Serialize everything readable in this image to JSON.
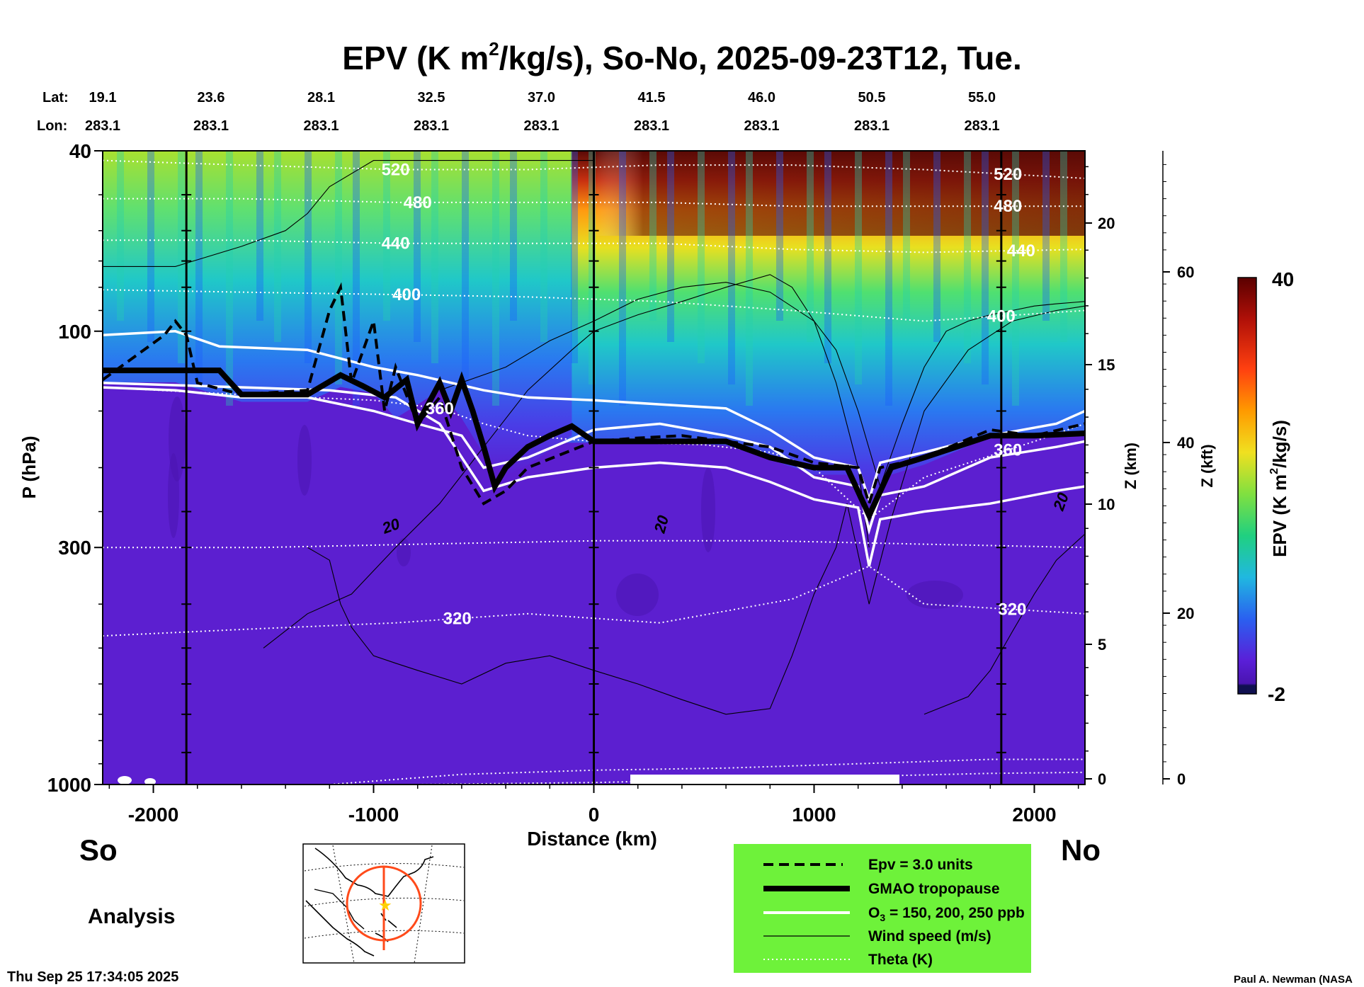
{
  "title_main": "EPV (K m",
  "title_sup": "2",
  "title_rest": "/kg/s), So-No, 2025-09-23T12, Tue.",
  "lat_label": "Lat:",
  "lon_label": "Lon:",
  "lat_values": [
    "19.1",
    "23.6",
    "28.1",
    "32.5",
    "37.0",
    "41.5",
    "46.0",
    "50.5",
    "55.0"
  ],
  "lon_values": [
    "283.1",
    "283.1",
    "283.1",
    "283.1",
    "283.1",
    "283.1",
    "283.1",
    "283.1",
    "283.1"
  ],
  "left_end": "So",
  "right_end": "No",
  "analysis_label": "Analysis",
  "timestamp": "Thu Sep 25 17:34:05 2025",
  "credit": "Paul A. Newman (NASA",
  "legend": {
    "items": [
      {
        "label": "Epv = 3.0 units",
        "style": "dashed"
      },
      {
        "label": "GMAO tropopause",
        "style": "thick"
      },
      {
        "label_pre": "O",
        "label_sub": "3",
        "label_post": " = 150, 200, 250 ppb",
        "style": "white"
      },
      {
        "label": "Wind speed (m/s)",
        "style": "thin"
      },
      {
        "label": "Theta (K)",
        "style": "dotted"
      }
    ],
    "bg_color": "#6ef23a"
  },
  "colorbar": {
    "label_pre": "EPV (K m",
    "label_sup": "2",
    "label_post": "/kg/s)",
    "max_label": "40",
    "min_label": "-2"
  },
  "chart_data": {
    "type": "heatmap",
    "title": "EPV (K m2/kg/s), So-No, 2025-09-23T12, Tue.",
    "xlabel": "Distance (km)",
    "ylabel": "P (hPa)",
    "xlim": [
      -2230,
      2230
    ],
    "ylim": [
      1000,
      40
    ],
    "y_scale": "log",
    "x_ticks": [
      -2000,
      -1000,
      0,
      1000,
      2000
    ],
    "x_tick_labels": [
      "-2000",
      "-1000",
      "0",
      "1000",
      "2000"
    ],
    "y_ticks": [
      1000,
      300,
      100,
      40
    ],
    "y_tick_labels": [
      "1000",
      "300",
      "100",
      "40"
    ],
    "z_km_label": "Z (km)",
    "z_km_ticks": [
      0,
      5,
      10,
      15,
      20
    ],
    "z_km_tick_labels": [
      "0",
      "5",
      "10",
      "15",
      "20"
    ],
    "z_kft_label": "Z (kft)",
    "z_kft_ticks": [
      0,
      20,
      40,
      60
    ],
    "z_kft_tick_labels": [
      "0",
      "20",
      "40",
      "60"
    ],
    "colorbar_range": [
      -2,
      40
    ],
    "theta_contours": [
      {
        "label": "520",
        "x": [
          -2230,
          -1600,
          -900,
          -300,
          300,
          900,
          1500,
          2230
        ],
        "p": [
          42,
          43,
          44,
          44,
          43,
          43,
          44,
          46
        ]
      },
      {
        "label": "480",
        "x": [
          -2230,
          -1600,
          -900,
          -300,
          300,
          900,
          1500,
          2230
        ],
        "p": [
          51,
          51,
          52,
          52,
          52,
          53,
          53,
          53
        ]
      },
      {
        "label": "440",
        "x": [
          -2230,
          -1600,
          -900,
          -300,
          300,
          900,
          1500,
          2230
        ],
        "p": [
          63,
          63,
          64,
          64,
          64,
          66,
          67,
          66
        ]
      },
      {
        "label": "400",
        "x": [
          -2230,
          -1600,
          -900,
          -300,
          300,
          900,
          1500,
          2230
        ],
        "p": [
          81,
          82,
          83,
          84,
          86,
          90,
          95,
          90
        ]
      },
      {
        "label": "360",
        "x": [
          -2230,
          -1600,
          -1000,
          -700,
          -500,
          -300,
          0,
          500,
          800,
          1000,
          1250,
          1500,
          2000,
          2230
        ],
        "p": [
          133,
          138,
          142,
          148,
          160,
          170,
          175,
          178,
          185,
          200,
          260,
          210,
          175,
          160
        ]
      },
      {
        "label": "320",
        "x": [
          -2230,
          -1600,
          -900,
          -300,
          300,
          900,
          1250,
          1500,
          2230
        ],
        "p": [
          470,
          455,
          440,
          420,
          440,
          390,
          330,
          400,
          420
        ]
      }
    ],
    "wind_speed_contour_label": "20",
    "ozone_ppb": [
      150,
      200,
      250
    ],
    "epv_contour_value": 3.0
  }
}
